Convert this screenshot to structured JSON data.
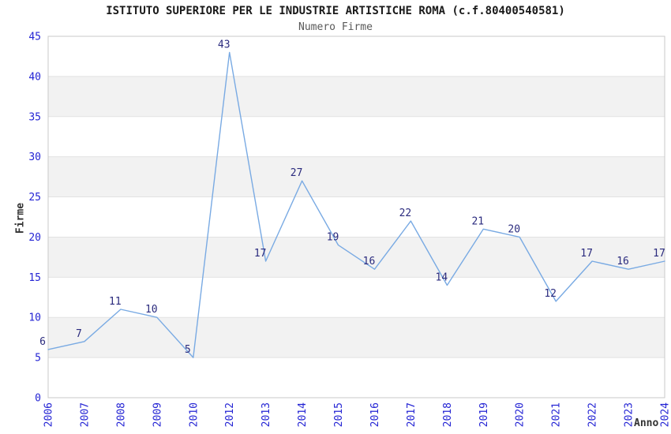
{
  "page": {
    "background": "#ffffff"
  },
  "chart_data": {
    "type": "line",
    "title": "ISTITUTO SUPERIORE PER LE INDUSTRIE ARTISTICHE ROMA (c.f.80400540581)",
    "subtitle": "Numero Firme",
    "xlabel": "Anno",
    "ylabel": "Firme",
    "x": [
      "2006",
      "2007",
      "2008",
      "2009",
      "2010",
      "2012",
      "2013",
      "2014",
      "2015",
      "2016",
      "2017",
      "2018",
      "2019",
      "2020",
      "2021",
      "2022",
      "2023",
      "2024"
    ],
    "series": [
      {
        "name": "Numero Firme",
        "values": [
          6,
          7,
          11,
          10,
          5,
          43,
          17,
          27,
          19,
          16,
          22,
          14,
          21,
          20,
          12,
          17,
          16,
          17
        ]
      }
    ],
    "point_labels_shown": true,
    "ylim": [
      0,
      45
    ],
    "yticks": [
      0,
      5,
      10,
      15,
      20,
      25,
      30,
      35,
      40,
      45
    ],
    "grid": "horizontal-bands",
    "shaded_band_starts": [
      5,
      15,
      25,
      35
    ],
    "legend": "none",
    "x_tick_rotation_deg": -90,
    "colors": {
      "line": "#79aae3",
      "point_label": "#2b2b7e",
      "tick_label": "#2424d4",
      "band": "#f2f2f2",
      "grid_line": "#e2e2e2",
      "plot_border": "#c9c9c9",
      "title": "#1a1a1a",
      "subtitle": "#595959",
      "axis_label": "#333333",
      "plot_background": "#ffffff"
    }
  }
}
